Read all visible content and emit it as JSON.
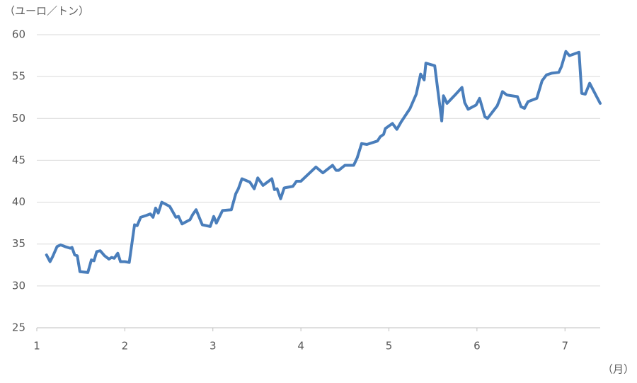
{
  "chart_data": {
    "type": "line",
    "ylabel": "（ユーロ／トン）",
    "xlabel": "（月）",
    "xlim": [
      1,
      7.4
    ],
    "xticks": [
      1,
      2,
      3,
      4,
      5,
      6,
      7
    ],
    "ylim": [
      25,
      60
    ],
    "yticks": [
      25,
      30,
      35,
      40,
      45,
      50,
      55,
      60
    ],
    "grid": true,
    "series": [
      {
        "color": "#4a7ebb",
        "x": [
          1.11,
          1.15,
          1.18,
          1.23,
          1.27,
          1.32,
          1.38,
          1.4,
          1.43,
          1.46,
          1.49,
          1.58,
          1.62,
          1.65,
          1.68,
          1.72,
          1.77,
          1.82,
          1.85,
          1.88,
          1.92,
          1.95,
          2.0,
          2.05,
          2.11,
          2.14,
          2.18,
          2.24,
          2.29,
          2.32,
          2.35,
          2.38,
          2.42,
          2.51,
          2.58,
          2.61,
          2.65,
          2.74,
          2.77,
          2.81,
          2.88,
          2.97,
          3.01,
          3.04,
          3.11,
          3.21,
          3.26,
          3.29,
          3.33,
          3.42,
          3.47,
          3.51,
          3.57,
          3.67,
          3.7,
          3.73,
          3.77,
          3.81,
          3.91,
          3.95,
          4.0,
          4.17,
          4.25,
          4.36,
          4.4,
          4.43,
          4.5,
          4.6,
          4.64,
          4.69,
          4.75,
          4.87,
          4.9,
          4.94,
          4.96,
          5.04,
          5.09,
          5.14,
          5.24,
          5.31,
          5.36,
          5.4,
          5.42,
          5.52,
          5.6,
          5.62,
          5.66,
          5.76,
          5.83,
          5.86,
          5.9,
          5.99,
          6.03,
          6.09,
          6.12,
          6.23,
          6.26,
          6.29,
          6.34,
          6.46,
          6.5,
          6.54,
          6.58,
          6.68,
          6.74,
          6.79,
          6.85,
          6.93,
          6.96,
          7.01,
          7.05,
          7.16,
          7.19,
          7.23,
          7.28,
          7.36,
          7.4
        ],
        "values": [
          33.7,
          32.9,
          33.5,
          34.7,
          34.9,
          34.7,
          34.5,
          34.6,
          33.7,
          33.6,
          31.7,
          31.6,
          33.1,
          33.0,
          34.1,
          34.2,
          33.6,
          33.2,
          33.4,
          33.3,
          33.9,
          32.9,
          32.9,
          32.8,
          37.3,
          37.2,
          38.2,
          38.4,
          38.6,
          38.2,
          39.3,
          38.7,
          40.0,
          39.5,
          38.2,
          38.3,
          37.4,
          37.9,
          38.5,
          39.1,
          37.3,
          37.1,
          38.3,
          37.5,
          39.0,
          39.1,
          41.0,
          41.6,
          42.8,
          42.4,
          41.6,
          42.9,
          42.0,
          42.8,
          41.5,
          41.6,
          40.4,
          41.7,
          41.9,
          42.5,
          42.5,
          44.2,
          43.5,
          44.4,
          43.8,
          43.8,
          44.4,
          44.4,
          45.3,
          47.0,
          46.9,
          47.3,
          47.8,
          48.1,
          48.8,
          49.4,
          48.7,
          49.6,
          51.2,
          52.9,
          55.3,
          54.6,
          56.6,
          56.3,
          49.7,
          52.7,
          51.8,
          52.9,
          53.7,
          51.9,
          51.1,
          51.6,
          52.4,
          50.2,
          50.0,
          51.5,
          52.3,
          53.2,
          52.8,
          52.6,
          51.4,
          51.2,
          52.0,
          52.4,
          54.5,
          55.2,
          55.4,
          55.5,
          56.2,
          58.0,
          57.5,
          57.9,
          53.0,
          52.9,
          54.2,
          52.6,
          51.8
        ]
      }
    ]
  }
}
